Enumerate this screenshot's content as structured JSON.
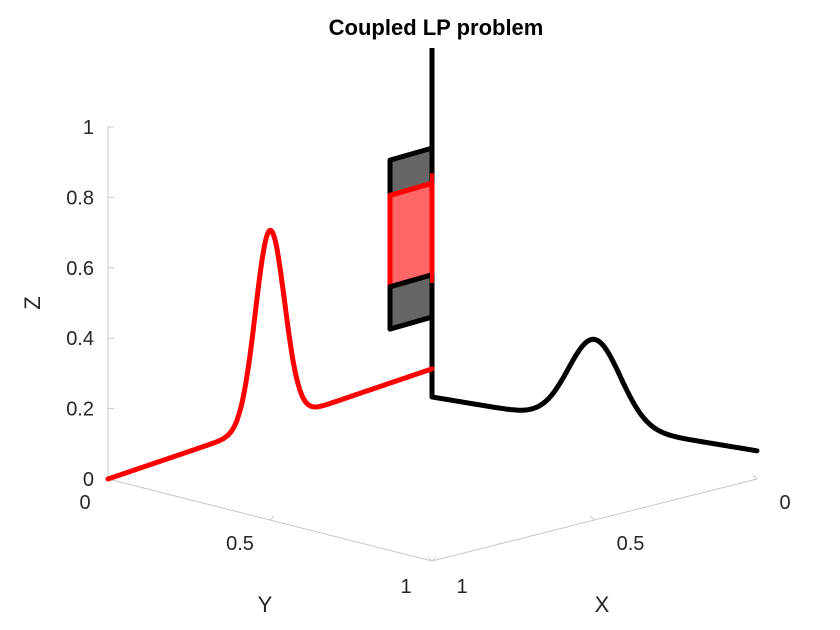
{
  "chart_data": {
    "type": "line3d",
    "title": "Coupled LP problem",
    "xlabel": "X",
    "ylabel": "Y",
    "zlabel": "Z",
    "xlim": [
      0,
      1
    ],
    "ylim": [
      0,
      1
    ],
    "zlim": [
      0,
      1
    ],
    "x_ticks": [
      "0",
      "0.5",
      "1"
    ],
    "y_ticks": [
      "0",
      "0.5",
      "1"
    ],
    "z_ticks": [
      "0",
      "0.2",
      "0.4",
      "0.6",
      "0.8",
      "1"
    ],
    "x_tick_values": [
      0,
      0.5,
      1
    ],
    "y_tick_values": [
      0,
      0.5,
      1
    ],
    "z_tick_values": [
      0,
      0.2,
      0.4,
      0.6,
      0.8,
      1
    ],
    "series": [
      {
        "name": "red curve (Y–Z plane, X=0)",
        "color": "#ff0000",
        "plane": "YZ",
        "baseline": [
          [
            0,
            0
          ],
          [
            1,
            0.08
          ]
        ],
        "bump": {
          "center": 0.5,
          "width": 0.045,
          "height": 0.55
        }
      },
      {
        "name": "black curve (X–Z plane, Y=1)",
        "color": "#000000",
        "plane": "XZ",
        "baseline": [
          [
            1,
            0
          ],
          [
            0,
            0.08
          ]
        ],
        "bump": {
          "center": 0.5,
          "width": 0.08,
          "height": 0.24
        }
      }
    ],
    "vertical_line": {
      "color": "#000000",
      "x": 0,
      "y": 1,
      "z_range": [
        0.08,
        1.2
      ]
    },
    "bands": [
      {
        "name": "upper dark block",
        "face_color": "#666666",
        "edge_color": "#000000",
        "z_range": [
          0.8,
          0.94
        ]
      },
      {
        "name": "red block",
        "face_color": "#ff6666",
        "edge_color": "#ff0000",
        "z_range": [
          0.58,
          0.84
        ]
      },
      {
        "name": "lower dark block",
        "face_color": "#666666",
        "edge_color": "#000000",
        "z_range": [
          0.46,
          0.58
        ]
      }
    ]
  }
}
